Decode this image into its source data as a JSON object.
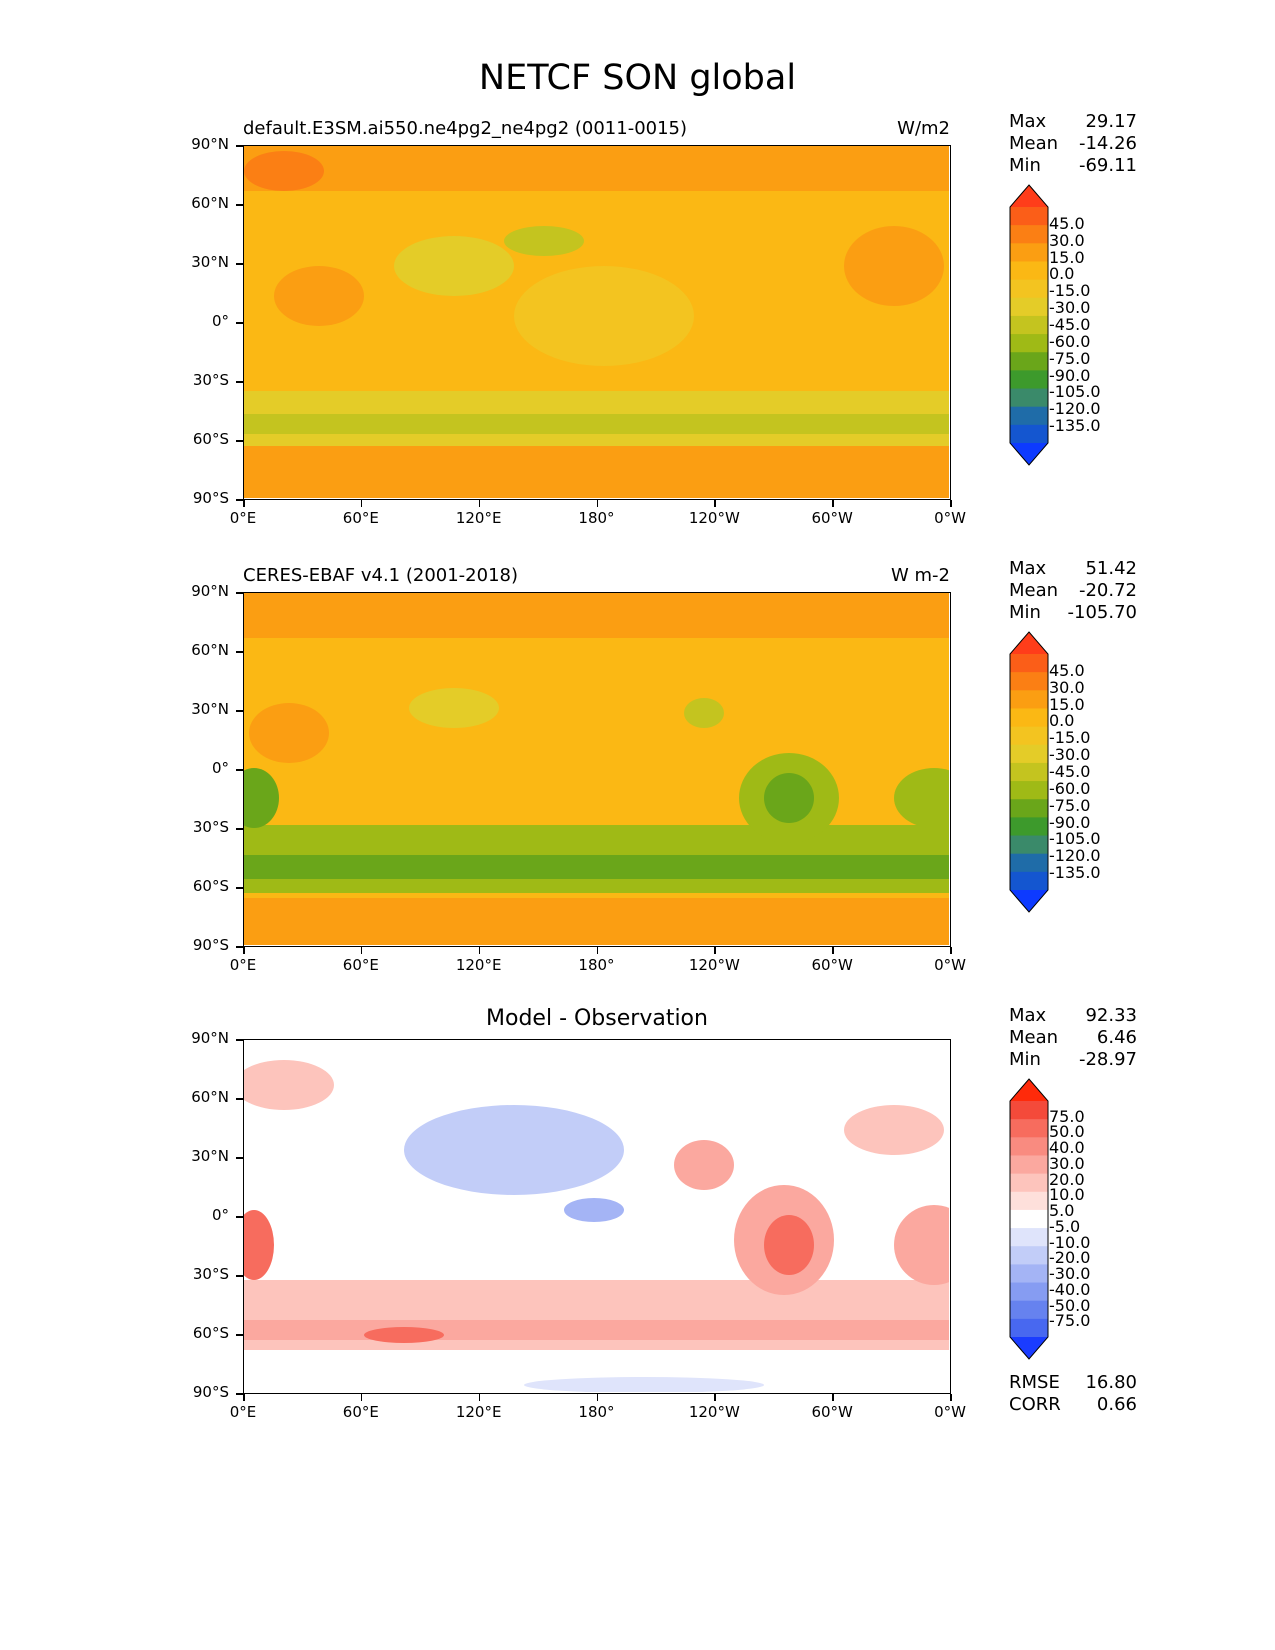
{
  "figure": {
    "title": "NETCF SON global"
  },
  "axes": {
    "y_ticks": [
      "90°N",
      "60°N",
      "30°N",
      "0°",
      "30°S",
      "60°S",
      "90°S"
    ],
    "x_ticks": [
      "0°E",
      "60°E",
      "120°E",
      "180°",
      "120°W",
      "60°W",
      "0°W"
    ]
  },
  "chart_data": [
    {
      "type": "heatmap",
      "title_left": "default.E3SM.ai550.ne4pg2_ne4pg2 (0011-0015)",
      "title_right": "W/m2",
      "xlim": [
        0,
        360
      ],
      "ylim": [
        -90,
        90
      ],
      "stats": {
        "max_label": "Max",
        "max": "29.17",
        "mean_label": "Mean",
        "mean": "-14.26",
        "min_label": "Min",
        "min": "-69.11"
      },
      "colorbar": {
        "levels": [
          "45.0",
          "30.0",
          "15.0",
          "0.0",
          "-15.0",
          "-30.0",
          "-45.0",
          "-60.0",
          "-75.0",
          "-90.0",
          "-105.0",
          "-120.0",
          "-135.0"
        ],
        "colors": [
          "#ff3d1a",
          "#fb5e18",
          "#fb7f14",
          "#fb9e12",
          "#fbb814",
          "#f3c420",
          "#e4cc28",
          "#c4c41f",
          "#9fba16",
          "#6aa61a",
          "#3d9a2c",
          "#3a8a6a",
          "#1f6ca8",
          "#1456d0",
          "#0d3aff"
        ]
      }
    },
    {
      "type": "heatmap",
      "title_left": "CERES-EBAF v4.1 (2001-2018)",
      "title_right": "W m-2",
      "xlim": [
        0,
        360
      ],
      "ylim": [
        -90,
        90
      ],
      "stats": {
        "max_label": "Max",
        "max": "51.42",
        "mean_label": "Mean",
        "mean": "-20.72",
        "min_label": "Min",
        "min": "-105.70"
      },
      "colorbar": {
        "levels": [
          "45.0",
          "30.0",
          "15.0",
          "0.0",
          "-15.0",
          "-30.0",
          "-45.0",
          "-60.0",
          "-75.0",
          "-90.0",
          "-105.0",
          "-120.0",
          "-135.0"
        ],
        "colors": [
          "#ff3d1a",
          "#fb5e18",
          "#fb7f14",
          "#fb9e12",
          "#fbb814",
          "#f3c420",
          "#e4cc28",
          "#c4c41f",
          "#9fba16",
          "#6aa61a",
          "#3d9a2c",
          "#3a8a6a",
          "#1f6ca8",
          "#1456d0",
          "#0d3aff"
        ]
      }
    },
    {
      "type": "heatmap",
      "title": "Model - Observation",
      "xlim": [
        0,
        360
      ],
      "ylim": [
        -90,
        90
      ],
      "stats": {
        "max_label": "Max",
        "max": "92.33",
        "mean_label": "Mean",
        "mean": "6.46",
        "min_label": "Min",
        "min": "-28.97"
      },
      "colorbar": {
        "levels": [
          "75.0",
          "50.0",
          "40.0",
          "30.0",
          "20.0",
          "10.0",
          "5.0",
          "-5.0",
          "-10.0",
          "-20.0",
          "-30.0",
          "-40.0",
          "-50.0",
          "-75.0"
        ],
        "colors": [
          "#ff2a0a",
          "#f44a3a",
          "#f76c5e",
          "#f98b80",
          "#fba89f",
          "#fdc4bc",
          "#fee0db",
          "#ffffff",
          "#dfe4fb",
          "#c2cdf8",
          "#a4b4f5",
          "#869cf2",
          "#6682ef",
          "#4868f0",
          "#1a3cff"
        ]
      },
      "footer": {
        "rmse_label": "RMSE",
        "rmse": "16.80",
        "corr_label": "CORR",
        "corr": "0.66"
      }
    }
  ]
}
